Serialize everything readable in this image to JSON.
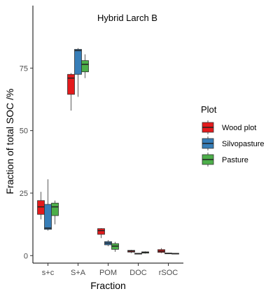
{
  "chart_data": {
    "type": "boxplot",
    "title": "Hybrid Larch B",
    "xlabel": "Fraction",
    "ylabel": "Fraction of total SOC /%",
    "ylim": [
      -3,
      100
    ],
    "yticks": [
      0,
      25,
      50,
      75
    ],
    "grid": false,
    "legend": {
      "title": "Plot",
      "position": "right"
    },
    "categories": [
      "s+c",
      "S+A",
      "POM",
      "DOC",
      "rSOC"
    ],
    "series": [
      {
        "name": "Wood plot",
        "color": "#E41A1C",
        "boxes": [
          {
            "min": 14.5,
            "q1": 16.5,
            "median": 19.5,
            "q3": 22.0,
            "max": 25.5
          },
          {
            "min": 58.0,
            "q1": 64.5,
            "median": 71.0,
            "q3": 72.5,
            "max": 73.0
          },
          {
            "min": 7.0,
            "q1": 8.5,
            "median": 10.0,
            "q3": 10.8,
            "max": 11.0
          },
          {
            "min": 1.0,
            "q1": 1.4,
            "median": 1.8,
            "q3": 2.1,
            "max": 2.3
          },
          {
            "min": 1.0,
            "q1": 1.3,
            "median": 1.8,
            "q3": 2.4,
            "max": 3.0
          }
        ]
      },
      {
        "name": "Silvopasture",
        "color": "#377EB8",
        "boxes": [
          {
            "min": 10.0,
            "q1": 10.5,
            "median": 11.0,
            "q3": 20.5,
            "max": 30.5
          },
          {
            "min": 63.5,
            "q1": 72.5,
            "median": 82.0,
            "q3": 82.5,
            "max": 83.0
          },
          {
            "min": 3.8,
            "q1": 4.3,
            "median": 5.0,
            "q3": 5.6,
            "max": 6.2
          },
          {
            "min": 0.5,
            "q1": 0.6,
            "median": 0.8,
            "q3": 0.9,
            "max": 1.0
          },
          {
            "min": 0.7,
            "q1": 0.8,
            "median": 0.9,
            "q3": 1.0,
            "max": 1.1
          }
        ]
      },
      {
        "name": "Pasture",
        "color": "#4DAF4A",
        "boxes": [
          {
            "min": 12.5,
            "q1": 16.0,
            "median": 19.5,
            "q3": 21.0,
            "max": 22.0
          },
          {
            "min": 71.0,
            "q1": 73.5,
            "median": 76.5,
            "q3": 78.0,
            "max": 80.5
          },
          {
            "min": 1.5,
            "q1": 2.5,
            "median": 3.8,
            "q3": 4.8,
            "max": 5.5
          },
          {
            "min": 0.8,
            "q1": 1.0,
            "median": 1.3,
            "q3": 1.5,
            "max": 1.7
          },
          {
            "min": 0.6,
            "q1": 0.7,
            "median": 0.8,
            "q3": 0.9,
            "max": 1.0
          }
        ]
      }
    ]
  }
}
